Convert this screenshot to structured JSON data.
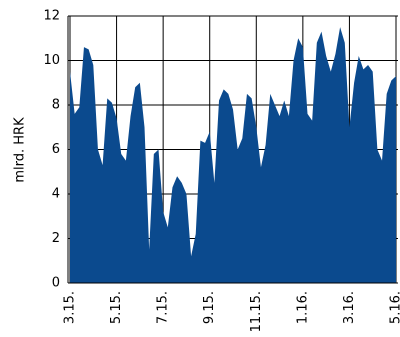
{
  "chart_data": {
    "type": "area",
    "y_label": "mlrd. HRK",
    "categories": [
      "3.15.",
      null,
      null,
      null,
      null,
      null,
      null,
      null,
      null,
      null,
      "5.15.",
      null,
      null,
      null,
      null,
      null,
      null,
      null,
      null,
      null,
      "7.15.",
      null,
      null,
      null,
      null,
      null,
      null,
      null,
      null,
      null,
      "9.15.",
      null,
      null,
      null,
      null,
      null,
      null,
      null,
      null,
      null,
      "11.15.",
      null,
      null,
      null,
      null,
      null,
      null,
      null,
      null,
      null,
      "1.16.",
      null,
      null,
      null,
      null,
      null,
      null,
      null,
      null,
      null,
      "3.16.",
      null,
      null,
      null,
      null,
      null,
      null,
      null,
      null,
      null,
      "5.16."
    ],
    "values": [
      9.5,
      7.6,
      7.9,
      10.6,
      10.5,
      9.8,
      6,
      5.3,
      8.3,
      8.1,
      7.4,
      5.8,
      5.5,
      7.5,
      8.8,
      9,
      7,
      1.5,
      5.8,
      6,
      3.2,
      2.5,
      4.3,
      4.8,
      4.5,
      4,
      1.2,
      2.2,
      6.4,
      6.3,
      6.8,
      4.5,
      8.2,
      8.7,
      8.5,
      7.8,
      6,
      6.5,
      8.5,
      8.3,
      7,
      5.2,
      6.2,
      8.5,
      8,
      7.5,
      8.2,
      7.5,
      10,
      11,
      10.6,
      7.6,
      7.3,
      10.8,
      11.3,
      10.2,
      9.5,
      10.3,
      11.5,
      10.8,
      7,
      9,
      10.2,
      9.6,
      9.8,
      9.5,
      6,
      5.5,
      8.5,
      9.1,
      9.3
    ],
    "color": "#0b4a8e",
    "ylim": [
      0,
      12
    ],
    "yticks": [
      0,
      2,
      4,
      6,
      8,
      10,
      12
    ],
    "grid": true
  }
}
